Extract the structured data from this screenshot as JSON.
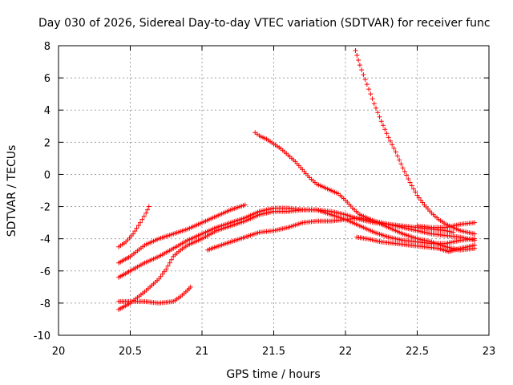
{
  "chart_data": {
    "type": "scatter",
    "title": "Day 030 of 2026, Sidereal Day-to-day VTEC variation (SDTVAR) for receiver func",
    "xlabel": "GPS time / hours",
    "ylabel": "SDTVAR / TECUs",
    "xlim": [
      20,
      23
    ],
    "ylim": [
      -10,
      8
    ],
    "xticks": [
      "20",
      "20.5",
      "21",
      "21.5",
      "22",
      "22.5",
      "23"
    ],
    "xtick_values": [
      20,
      20.5,
      21,
      21.5,
      22,
      22.5,
      23
    ],
    "yticks": [
      "-10",
      "-8",
      "-6",
      "-4",
      "-2",
      "0",
      "2",
      "4",
      "6",
      "8"
    ],
    "ytick_values": [
      -10,
      -8,
      -6,
      -4,
      -2,
      0,
      2,
      4,
      6,
      8
    ],
    "grid": true,
    "marker": "+",
    "color": "#ff0000",
    "series": [
      {
        "name": "s1",
        "points": [
          [
            20.42,
            -4.5
          ],
          [
            20.47,
            -4.2
          ],
          [
            20.52,
            -3.7
          ],
          [
            20.57,
            -3.0
          ],
          [
            20.61,
            -2.4
          ],
          [
            20.63,
            -2.0
          ]
        ]
      },
      {
        "name": "s2",
        "points": [
          [
            20.42,
            -5.5
          ],
          [
            20.5,
            -5.1
          ],
          [
            20.6,
            -4.4
          ],
          [
            20.7,
            -4.0
          ],
          [
            20.8,
            -3.7
          ],
          [
            20.9,
            -3.4
          ],
          [
            21.0,
            -3.0
          ],
          [
            21.1,
            -2.6
          ],
          [
            21.2,
            -2.2
          ],
          [
            21.3,
            -1.9
          ]
        ]
      },
      {
        "name": "s3",
        "points": [
          [
            20.42,
            -6.4
          ],
          [
            20.5,
            -6.0
          ],
          [
            20.6,
            -5.5
          ],
          [
            20.7,
            -5.1
          ],
          [
            20.8,
            -4.6
          ],
          [
            20.9,
            -4.1
          ],
          [
            21.0,
            -3.7
          ],
          [
            21.1,
            -3.3
          ],
          [
            21.2,
            -3.0
          ],
          [
            21.3,
            -2.7
          ],
          [
            21.4,
            -2.3
          ],
          [
            21.5,
            -2.1
          ],
          [
            21.6,
            -2.1
          ],
          [
            21.7,
            -2.2
          ],
          [
            21.8,
            -2.2
          ],
          [
            21.9,
            -2.3
          ],
          [
            22.0,
            -2.5
          ],
          [
            22.1,
            -2.8
          ],
          [
            22.2,
            -3.0
          ],
          [
            22.3,
            -3.1
          ],
          [
            22.4,
            -3.2
          ],
          [
            22.5,
            -3.3
          ],
          [
            22.6,
            -3.4
          ],
          [
            22.7,
            -3.5
          ],
          [
            22.75,
            -3.6
          ]
        ]
      },
      {
        "name": "s4",
        "points": [
          [
            20.42,
            -7.9
          ],
          [
            20.5,
            -7.9
          ],
          [
            20.6,
            -7.9
          ],
          [
            20.7,
            -8.0
          ],
          [
            20.8,
            -7.9
          ],
          [
            20.85,
            -7.6
          ],
          [
            20.9,
            -7.2
          ],
          [
            20.92,
            -7.0
          ]
        ]
      },
      {
        "name": "s5",
        "points": [
          [
            20.42,
            -8.4
          ],
          [
            20.5,
            -8.0
          ],
          [
            20.6,
            -7.3
          ],
          [
            20.7,
            -6.5
          ],
          [
            20.75,
            -5.9
          ],
          [
            20.8,
            -5.1
          ],
          [
            20.85,
            -4.7
          ],
          [
            20.9,
            -4.4
          ],
          [
            21.0,
            -4.0
          ],
          [
            21.1,
            -3.5
          ],
          [
            21.2,
            -3.2
          ],
          [
            21.3,
            -2.9
          ],
          [
            21.4,
            -2.5
          ],
          [
            21.5,
            -2.3
          ],
          [
            21.6,
            -2.3
          ],
          [
            21.7,
            -2.2
          ],
          [
            21.8,
            -2.2
          ],
          [
            21.9,
            -2.5
          ],
          [
            22.0,
            -2.8
          ],
          [
            22.1,
            -3.2
          ],
          [
            22.2,
            -3.6
          ],
          [
            22.3,
            -3.9
          ],
          [
            22.4,
            -4.1
          ],
          [
            22.5,
            -4.2
          ],
          [
            22.6,
            -4.3
          ],
          [
            22.7,
            -4.3
          ],
          [
            22.8,
            -4.1
          ],
          [
            22.9,
            -4.0
          ]
        ]
      },
      {
        "name": "s6",
        "points": [
          [
            21.04,
            -4.7
          ],
          [
            21.1,
            -4.5
          ],
          [
            21.2,
            -4.2
          ],
          [
            21.3,
            -3.9
          ],
          [
            21.4,
            -3.6
          ],
          [
            21.5,
            -3.5
          ],
          [
            21.6,
            -3.3
          ],
          [
            21.7,
            -3.0
          ],
          [
            21.8,
            -2.9
          ],
          [
            21.9,
            -2.9
          ],
          [
            22.0,
            -2.8
          ],
          [
            22.1,
            -2.7
          ],
          [
            22.2,
            -2.9
          ],
          [
            22.3,
            -3.1
          ],
          [
            22.4,
            -3.3
          ],
          [
            22.5,
            -3.5
          ],
          [
            22.6,
            -3.7
          ],
          [
            22.7,
            -3.8
          ],
          [
            22.8,
            -3.9
          ],
          [
            22.9,
            -4.1
          ]
        ]
      },
      {
        "name": "s7",
        "points": [
          [
            21.37,
            2.6
          ],
          [
            21.4,
            2.4
          ],
          [
            21.45,
            2.2
          ],
          [
            21.5,
            1.9
          ],
          [
            21.55,
            1.6
          ],
          [
            21.6,
            1.2
          ],
          [
            21.65,
            0.8
          ],
          [
            21.7,
            0.3
          ],
          [
            21.75,
            -0.2
          ],
          [
            21.8,
            -0.6
          ],
          [
            21.85,
            -0.8
          ],
          [
            21.9,
            -1.0
          ],
          [
            21.95,
            -1.2
          ],
          [
            22.0,
            -1.6
          ],
          [
            22.05,
            -2.1
          ],
          [
            22.1,
            -2.5
          ],
          [
            22.2,
            -2.9
          ],
          [
            22.3,
            -3.3
          ],
          [
            22.4,
            -3.7
          ],
          [
            22.5,
            -4.0
          ],
          [
            22.6,
            -4.2
          ],
          [
            22.7,
            -4.5
          ],
          [
            22.8,
            -4.7
          ],
          [
            22.9,
            -4.6
          ]
        ]
      },
      {
        "name": "s8",
        "points": [
          [
            22.07,
            7.7
          ],
          [
            22.1,
            6.8
          ],
          [
            22.15,
            5.6
          ],
          [
            22.2,
            4.4
          ],
          [
            22.25,
            3.3
          ],
          [
            22.3,
            2.3
          ],
          [
            22.35,
            1.4
          ],
          [
            22.4,
            0.4
          ],
          [
            22.45,
            -0.5
          ],
          [
            22.5,
            -1.3
          ],
          [
            22.55,
            -1.9
          ],
          [
            22.6,
            -2.4
          ],
          [
            22.65,
            -2.8
          ],
          [
            22.7,
            -3.1
          ],
          [
            22.75,
            -3.3
          ],
          [
            22.8,
            -3.5
          ],
          [
            22.85,
            -3.6
          ],
          [
            22.9,
            -3.7
          ]
        ]
      },
      {
        "name": "s9",
        "points": [
          [
            22.08,
            -3.9
          ],
          [
            22.15,
            -4.0
          ],
          [
            22.25,
            -4.2
          ],
          [
            22.35,
            -4.3
          ],
          [
            22.45,
            -4.4
          ],
          [
            22.55,
            -4.5
          ],
          [
            22.65,
            -4.6
          ],
          [
            22.72,
            -4.8
          ],
          [
            22.8,
            -4.6
          ],
          [
            22.9,
            -4.4
          ]
        ]
      },
      {
        "name": "s10",
        "points": [
          [
            22.5,
            -3.2
          ],
          [
            22.6,
            -3.3
          ],
          [
            22.7,
            -3.3
          ],
          [
            22.75,
            -3.2
          ],
          [
            22.8,
            -3.1
          ],
          [
            22.9,
            -3.0
          ]
        ]
      }
    ]
  }
}
